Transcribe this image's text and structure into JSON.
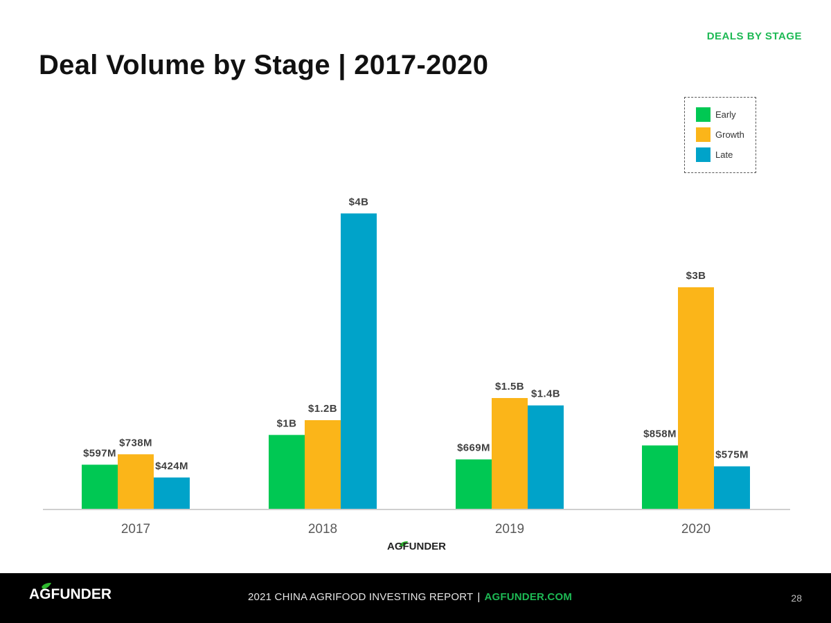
{
  "section_tag": "DEALS BY STAGE",
  "title": "Deal Volume by Stage  |  2017-2020",
  "chart_data": {
    "type": "bar",
    "categories": [
      "2017",
      "2018",
      "2019",
      "2020"
    ],
    "series": [
      {
        "name": "Early",
        "color": "#00c853",
        "values": [
          597,
          1000,
          669,
          858
        ],
        "labels": [
          "$597M",
          "$1B",
          "$669M",
          "$858M"
        ]
      },
      {
        "name": "Growth",
        "color": "#fbb519",
        "values": [
          738,
          1200,
          1500,
          3000
        ],
        "labels": [
          "$738M",
          "$1.2B",
          "$1.5B",
          "$3B"
        ]
      },
      {
        "name": "Late",
        "color": "#00a3c9",
        "values": [
          424,
          4000,
          1400,
          575
        ],
        "labels": [
          "$424M",
          "$4B",
          "$1.4B",
          "$575M"
        ]
      }
    ],
    "ylim": [
      0,
      4500
    ],
    "grid": false,
    "legend_position": "top-right"
  },
  "chart_logo": "AGFUNDER",
  "footer": {
    "logo": "AGFUNDER",
    "report_text": "2021 CHINA AGRIFOOD INVESTING REPORT",
    "separator": "|",
    "site": "AGFUNDER.COM",
    "page_number": "28"
  }
}
